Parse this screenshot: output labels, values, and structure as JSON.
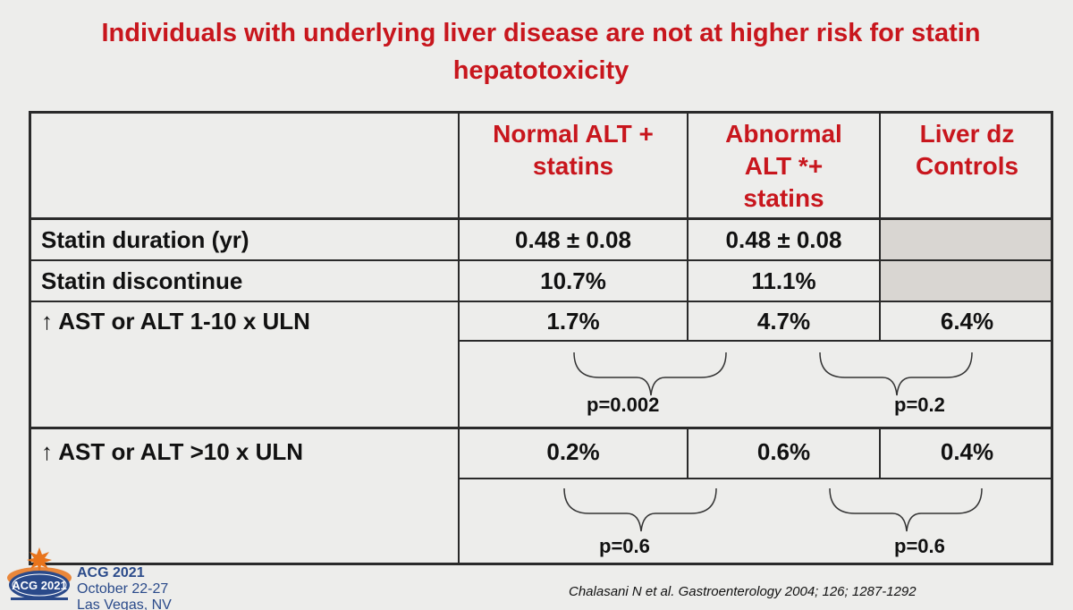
{
  "title": "Individuals with underlying liver disease are not at higher risk for statin hepatotoxicity",
  "columns": [
    {
      "label": "Normal ALT + statins"
    },
    {
      "label": "Abnormal ALT *+ statins"
    },
    {
      "label": "Liver dz Controls"
    }
  ],
  "header_lines": {
    "col1": [
      "Normal ALT +",
      "statins"
    ],
    "col2": [
      "Abnormal",
      "ALT *+",
      "statins"
    ],
    "col3": [
      "Liver dz",
      "Controls"
    ]
  },
  "rows": [
    {
      "label": "Statin duration (yr)",
      "values": [
        "0.48 ± 0.08",
        "0.48 ± 0.08",
        ""
      ]
    },
    {
      "label": "Statin discontinue",
      "values": [
        "10.7%",
        "11.1%",
        ""
      ]
    },
    {
      "label": "↑ AST or ALT 1-10 x ULN",
      "values": [
        "1.7%",
        "4.7%",
        "6.4%"
      ],
      "pvalues": [
        "p=0.002",
        "p=0.2"
      ]
    },
    {
      "label": "↑ AST or ALT >10 x ULN",
      "values": [
        "0.2%",
        "0.6%",
        "0.4%"
      ],
      "pvalues": [
        "p=0.6",
        "p=0.6"
      ]
    }
  ],
  "footer": {
    "event_name": "ACG 2021",
    "event_dates": "October 22-27",
    "event_location": "Las Vegas, NV",
    "logo_text": "ACG 2021",
    "citation": "Chalasani N et al. Gastroenterology 2004; 126; 1287-1292"
  },
  "colors": {
    "title": "#c8161d",
    "header": "#c8161d",
    "shade": "#d9d6d2",
    "logo_blue": "#2a4a8a",
    "logo_orange": "#e8741c"
  }
}
